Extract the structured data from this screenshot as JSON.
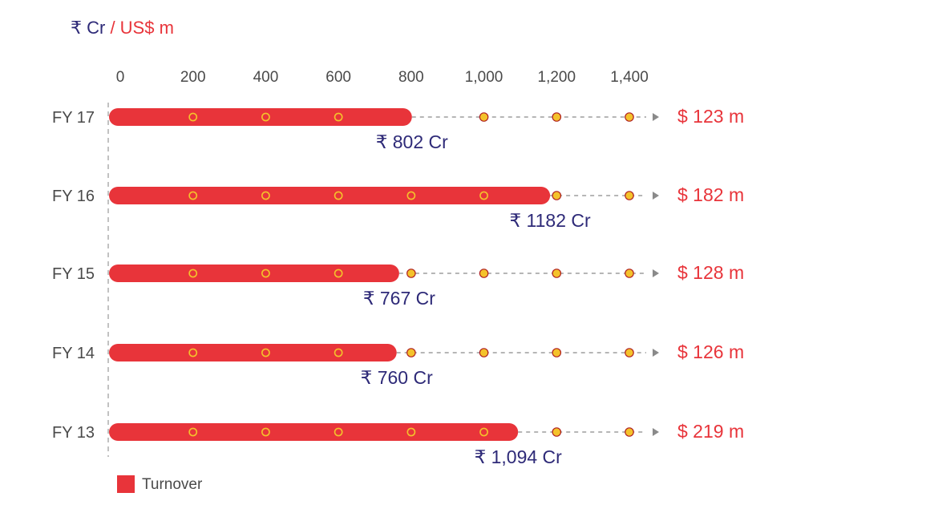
{
  "header": {
    "unit_inr": "₹ Cr",
    "unit_sep": " / ",
    "unit_usd": "US$ m"
  },
  "chart_data": {
    "type": "bar",
    "orientation": "horizontal",
    "title": "",
    "xlabel": "",
    "ylabel": "",
    "xlim": [
      0,
      1400
    ],
    "x_ticks": [
      "0",
      "200",
      "400",
      "600",
      "800",
      "1,000",
      "1,200",
      "1,400"
    ],
    "x_tick_values": [
      0,
      200,
      400,
      600,
      800,
      1000,
      1200,
      1400
    ],
    "categories": [
      "FY 17",
      "FY 16",
      "FY 15",
      "FY 14",
      "FY 13"
    ],
    "series": [
      {
        "name": "Turnover",
        "values": [
          802,
          1182,
          767,
          760,
          1094
        ],
        "color": "#e8343a"
      }
    ],
    "value_labels": [
      "₹ 802 Cr",
      "₹ 1182 Cr",
      "₹ 767 Cr",
      "₹ 760 Cr",
      "₹ 1,094 Cr"
    ],
    "usd_values": [
      123,
      182,
      128,
      126,
      219
    ],
    "usd_labels": [
      "$ 123 m",
      "$ 182 m",
      "$ 128 m",
      "$ 126 m",
      "$ 219 m"
    ],
    "legend": {
      "label": "Turnover",
      "position": "bottom-left"
    },
    "grid": false
  },
  "colors": {
    "bar": "#e8343a",
    "inr_text": "#2e2a78",
    "usd_text": "#e8343a",
    "marker": "#f4c22b"
  }
}
